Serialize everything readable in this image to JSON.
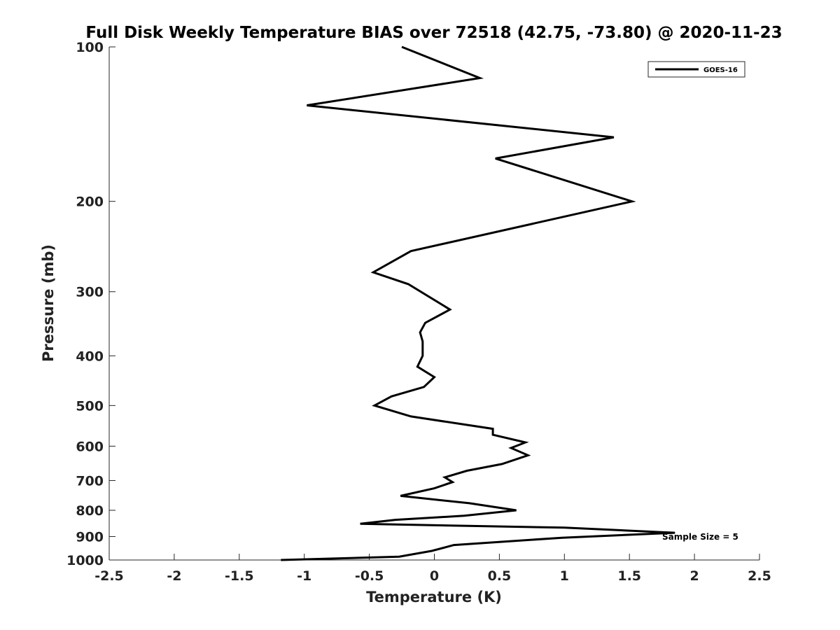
{
  "chart_data": {
    "type": "line",
    "title": "Full Disk Weekly Temperature BIAS over 72518 (42.75, -73.80) @ 2020-11-23",
    "xlabel": "Temperature (K)",
    "ylabel": "Pressure (mb)",
    "xlim": [
      -2.5,
      2.5
    ],
    "ylim": [
      1000,
      100
    ],
    "y_scale": "log",
    "x_ticks": [
      "-2.5",
      "-2",
      "-1.5",
      "-1",
      "-0.5",
      "0",
      "0.5",
      "1",
      "1.5",
      "2",
      "2.5"
    ],
    "y_ticks": [
      "100",
      "200",
      "300",
      "400",
      "500",
      "600",
      "700",
      "800",
      "900",
      "1000"
    ],
    "grid": false,
    "legend": {
      "position": "top-right",
      "entries": [
        "GOES-16"
      ]
    },
    "annotation": "Sample Size = 5",
    "series": [
      {
        "name": "GOES-16",
        "color": "#000000",
        "x": [
          -0.25,
          0.35,
          -0.98,
          1.38,
          0.47,
          1.52,
          -0.18,
          -0.47,
          -0.2,
          0.12,
          -0.07,
          -0.11,
          -0.09,
          -0.09,
          -0.13,
          0.0,
          -0.08,
          -0.33,
          -0.46,
          -0.18,
          0.45,
          0.45,
          0.7,
          0.59,
          0.72,
          0.52,
          0.25,
          0.08,
          0.14,
          0.0,
          -0.26,
          0.27,
          0.63,
          0.23,
          -0.3,
          -0.57,
          1.0,
          1.85,
          0.98,
          0.15,
          -0.02,
          -0.27,
          -1.18
        ],
        "y": [
          100,
          115,
          130,
          150,
          165,
          200,
          250,
          275,
          290,
          325,
          345,
          360,
          375,
          400,
          420,
          440,
          460,
          480,
          500,
          525,
          555,
          570,
          590,
          605,
          625,
          650,
          670,
          690,
          705,
          725,
          750,
          775,
          800,
          820,
          835,
          850,
          865,
          885,
          905,
          935,
          960,
          985,
          1000
        ]
      }
    ]
  }
}
